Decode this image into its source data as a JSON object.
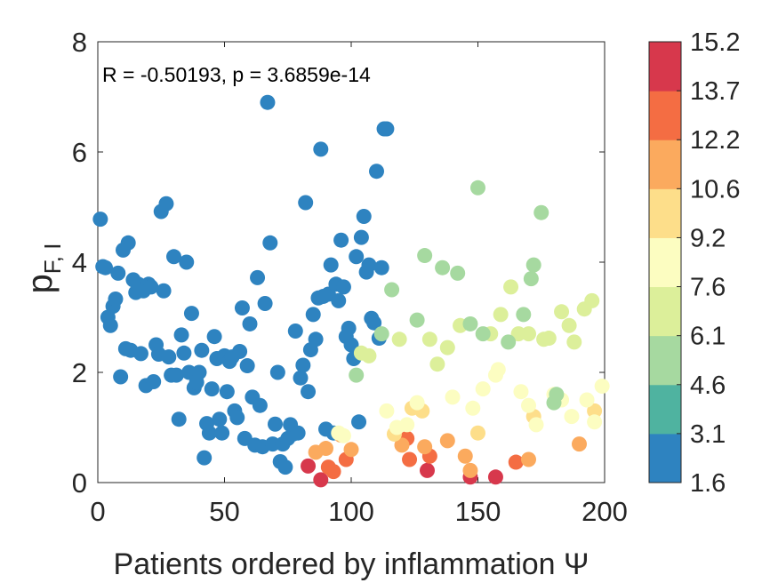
{
  "chart_data": {
    "type": "scatter",
    "xlabel": "Patients ordered by inflammation Ψ",
    "ylabel": "p",
    "ylabel_subscript": "F, I",
    "annotation": "R = -0.50193, p = 3.6859e-14",
    "xlim": [
      0,
      200
    ],
    "ylim": [
      0,
      8
    ],
    "xticks": [
      0,
      50,
      100,
      150,
      200
    ],
    "yticks": [
      0,
      2,
      4,
      6,
      8
    ],
    "grid": false,
    "colorbar": {
      "ticks": [
        "15.2",
        "13.7",
        "12.2",
        "10.6",
        "9.2",
        "7.6",
        "6.1",
        "4.6",
        "3.1",
        "1.6"
      ],
      "colors": [
        "#2e83c0",
        "#4fb3a0",
        "#a6d9a0",
        "#dcef9a",
        "#fcfdc1",
        "#fdde8a",
        "#fbaa5e",
        "#f46d43",
        "#d7384c"
      ]
    },
    "points": [
      [
        1,
        4.78,
        0
      ],
      [
        2,
        3.92,
        0
      ],
      [
        3,
        3.9,
        0
      ],
      [
        4,
        3.0,
        0
      ],
      [
        5,
        2.85,
        0
      ],
      [
        6,
        3.2,
        0
      ],
      [
        7,
        3.33,
        0
      ],
      [
        8,
        3.8,
        0
      ],
      [
        9,
        1.92,
        0
      ],
      [
        10,
        4.22,
        0
      ],
      [
        11,
        2.43,
        0
      ],
      [
        12,
        4.35,
        0
      ],
      [
        13,
        2.4,
        0
      ],
      [
        14,
        3.68,
        0
      ],
      [
        15,
        3.45,
        0
      ],
      [
        16,
        3.6,
        0
      ],
      [
        17,
        2.34,
        0
      ],
      [
        18,
        3.48,
        0
      ],
      [
        19,
        1.76,
        0
      ],
      [
        20,
        3.6,
        0
      ],
      [
        21,
        3.55,
        0
      ],
      [
        22,
        1.83,
        0
      ],
      [
        23,
        2.5,
        0
      ],
      [
        24,
        2.33,
        0
      ],
      [
        25,
        4.92,
        0
      ],
      [
        26,
        3.48,
        0
      ],
      [
        27,
        5.06,
        0
      ],
      [
        28,
        2.28,
        0
      ],
      [
        29,
        1.95,
        0
      ],
      [
        30,
        4.1,
        0
      ],
      [
        31,
        1.95,
        0
      ],
      [
        32,
        1.15,
        0
      ],
      [
        33,
        2.68,
        0
      ],
      [
        34,
        2.35,
        0
      ],
      [
        35,
        4.0,
        0
      ],
      [
        36,
        2.0,
        0
      ],
      [
        37,
        3.07,
        0
      ],
      [
        38,
        1.72,
        0
      ],
      [
        39,
        1.82,
        0
      ],
      [
        40,
        2.0,
        0
      ],
      [
        41,
        2.4,
        0
      ],
      [
        42,
        0.45,
        0
      ],
      [
        43,
        1.07,
        0
      ],
      [
        44,
        0.9,
        0
      ],
      [
        45,
        1.7,
        0
      ],
      [
        46,
        2.65,
        0
      ],
      [
        47,
        2.25,
        0
      ],
      [
        48,
        1.15,
        0
      ],
      [
        49,
        0.9,
        0
      ],
      [
        50,
        2.3,
        0
      ],
      [
        51,
        1.65,
        0
      ],
      [
        52,
        2.2,
        0
      ],
      [
        53,
        2.28,
        0
      ],
      [
        54,
        1.3,
        0
      ],
      [
        55,
        1.18,
        0
      ],
      [
        56,
        2.38,
        0
      ],
      [
        57,
        3.17,
        0
      ],
      [
        58,
        0.8,
        0
      ],
      [
        59,
        2.12,
        0
      ],
      [
        60,
        2.88,
        0
      ],
      [
        61,
        1.55,
        0
      ],
      [
        62,
        0.68,
        0
      ],
      [
        63,
        3.72,
        0
      ],
      [
        64,
        1.4,
        0
      ],
      [
        65,
        0.65,
        0
      ],
      [
        66,
        3.25,
        0
      ],
      [
        67,
        6.9,
        0
      ],
      [
        68,
        4.35,
        0
      ],
      [
        69,
        0.7,
        0
      ],
      [
        70,
        1.06,
        0
      ],
      [
        71,
        2.0,
        0
      ],
      [
        72,
        0.38,
        0
      ],
      [
        73,
        0.7,
        0
      ],
      [
        74,
        0.28,
        0
      ],
      [
        75,
        0.8,
        0
      ],
      [
        76,
        1.05,
        0
      ],
      [
        77,
        0.88,
        0
      ],
      [
        78,
        2.75,
        0
      ],
      [
        79,
        0.9,
        0
      ],
      [
        80,
        1.9,
        0
      ],
      [
        81,
        2.13,
        0
      ],
      [
        82,
        5.08,
        0
      ],
      [
        83,
        1.65,
        0
      ],
      [
        84,
        2.41,
        0
      ],
      [
        85,
        3.05,
        0
      ],
      [
        86,
        2.6,
        0
      ],
      [
        87,
        3.35,
        0
      ],
      [
        88,
        6.05,
        0
      ],
      [
        89,
        3.38,
        0
      ],
      [
        90,
        0.97,
        0
      ],
      [
        91,
        3.42,
        0
      ],
      [
        92,
        3.95,
        0
      ],
      [
        93,
        0.9,
        0
      ],
      [
        94,
        3.6,
        0
      ],
      [
        95,
        3.3,
        0
      ],
      [
        96,
        4.4,
        0
      ],
      [
        97,
        3.55,
        0
      ],
      [
        98,
        2.65,
        0
      ],
      [
        99,
        2.8,
        0
      ],
      [
        100,
        2.5,
        0
      ],
      [
        101,
        2.25,
        0
      ],
      [
        102,
        4.1,
        0
      ],
      [
        103,
        1.1,
        0
      ],
      [
        104,
        4.45,
        0
      ],
      [
        105,
        4.83,
        0
      ],
      [
        106,
        3.82,
        0
      ],
      [
        107,
        3.95,
        0
      ],
      [
        108,
        2.98,
        0
      ],
      [
        109,
        2.9,
        0
      ],
      [
        110,
        5.65,
        0
      ],
      [
        111,
        2.62,
        0
      ],
      [
        112,
        3.9,
        0
      ],
      [
        113,
        6.42,
        0
      ],
      [
        114,
        6.42,
        0
      ],
      [
        83,
        0.3,
        8
      ],
      [
        88,
        0.05,
        8
      ],
      [
        130,
        0.22,
        8
      ],
      [
        147,
        0.1,
        8
      ],
      [
        157,
        0.1,
        8
      ],
      [
        91,
        0.28,
        7
      ],
      [
        93,
        0.2,
        7
      ],
      [
        98,
        0.42,
        7
      ],
      [
        122,
        0.8,
        7
      ],
      [
        123,
        0.42,
        7
      ],
      [
        131,
        0.48,
        7
      ],
      [
        165,
        0.37,
        7
      ],
      [
        86,
        0.55,
        6
      ],
      [
        90,
        0.62,
        6
      ],
      [
        96,
        0.86,
        6
      ],
      [
        100,
        0.6,
        6
      ],
      [
        120,
        0.68,
        6
      ],
      [
        129,
        0.65,
        6
      ],
      [
        138,
        0.76,
        6
      ],
      [
        145,
        0.48,
        6
      ],
      [
        147,
        0.22,
        6
      ],
      [
        170,
        0.42,
        6
      ],
      [
        190,
        0.7,
        6
      ],
      [
        117,
        0.88,
        5
      ],
      [
        124,
        1.35,
        5
      ],
      [
        128,
        1.3,
        5
      ],
      [
        150,
        0.9,
        5
      ],
      [
        172,
        1.2,
        5
      ],
      [
        196,
        1.3,
        5
      ],
      [
        95,
        0.9,
        4
      ],
      [
        97,
        0.85,
        4
      ],
      [
        114,
        1.3,
        4
      ],
      [
        118,
        1.0,
        4
      ],
      [
        122,
        1.05,
        4
      ],
      [
        126,
        1.45,
        4
      ],
      [
        140,
        1.55,
        4
      ],
      [
        148,
        1.35,
        4
      ],
      [
        152,
        1.7,
        4
      ],
      [
        157,
        1.95,
        4
      ],
      [
        158,
        2.05,
        4
      ],
      [
        167,
        1.65,
        4
      ],
      [
        170,
        1.4,
        4
      ],
      [
        173,
        1.05,
        4
      ],
      [
        180,
        1.6,
        4
      ],
      [
        183,
        1.5,
        4
      ],
      [
        187,
        1.2,
        4
      ],
      [
        193,
        1.5,
        4
      ],
      [
        196,
        1.1,
        4
      ],
      [
        199,
        1.75,
        4
      ],
      [
        104,
        2.35,
        3
      ],
      [
        107,
        2.3,
        3
      ],
      [
        119,
        2.6,
        3
      ],
      [
        131,
        2.6,
        3
      ],
      [
        134,
        2.15,
        3
      ],
      [
        138,
        2.45,
        3
      ],
      [
        143,
        2.85,
        3
      ],
      [
        155,
        2.7,
        3
      ],
      [
        159,
        3.05,
        3
      ],
      [
        163,
        3.55,
        3
      ],
      [
        166,
        2.7,
        3
      ],
      [
        170,
        2.7,
        3
      ],
      [
        176,
        2.6,
        3
      ],
      [
        178,
        2.62,
        3
      ],
      [
        183,
        3.1,
        3
      ],
      [
        186,
        2.85,
        3
      ],
      [
        188,
        2.55,
        3
      ],
      [
        192,
        3.15,
        3
      ],
      [
        195,
        3.3,
        3
      ],
      [
        102,
        1.95,
        2
      ],
      [
        112,
        2.7,
        2
      ],
      [
        116,
        3.5,
        2
      ],
      [
        126,
        2.95,
        2
      ],
      [
        129,
        4.12,
        2
      ],
      [
        136,
        3.9,
        2
      ],
      [
        142,
        3.8,
        2
      ],
      [
        147,
        2.88,
        2
      ],
      [
        150,
        5.35,
        2
      ],
      [
        152,
        2.7,
        2
      ],
      [
        162,
        2.55,
        2
      ],
      [
        168,
        3.05,
        2
      ],
      [
        171,
        3.7,
        2
      ],
      [
        172,
        3.95,
        2
      ],
      [
        175,
        4.9,
        2
      ],
      [
        180,
        1.45,
        2
      ],
      [
        181,
        1.6,
        2
      ]
    ]
  }
}
